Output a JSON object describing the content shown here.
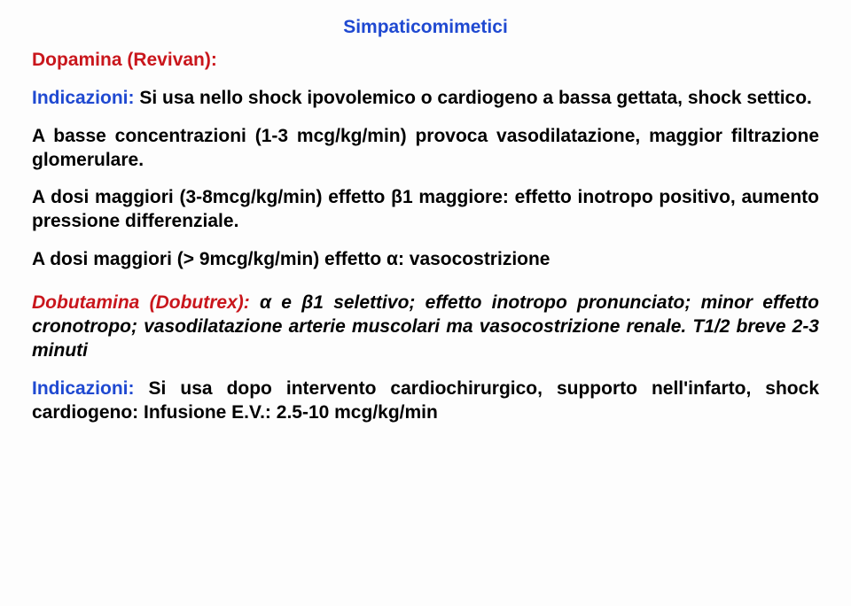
{
  "title": {
    "text": "Simpaticomimetici",
    "color": "#1f49d1"
  },
  "drug1": {
    "name": "Dopamina (Revivan):",
    "color": "#c9161c",
    "indLabel": "Indicazioni:",
    "indColor": "#1f49d1",
    "indText": " Si usa nello shock ipovolemico o cardiogeno a bassa gettata, shock settico."
  },
  "para2": "A basse concentrazioni (1-3 mcg/kg/min) provoca vasodilatazione, maggior filtrazione glomerulare.",
  "para3a": "A dosi maggiori (3-8mcg/kg/min) effetto ",
  "para3beta": "β",
  "para3b": "1 maggiore: effetto inotropo positivo, aumento pressione differenziale.",
  "para4a": "A dosi maggiori (> 9mcg/kg/min) effetto ",
  "para4alpha": "α",
  "para4b": ": vasocostrizione",
  "drug2": {
    "name": "Dobutamina (Dobutrex):",
    "color": "#c9161c",
    "aPart": " α ",
    "mid1": "e ",
    "betaPart": "β",
    "mid2": "1 selettivo; effetto inotropo pronunciato; minor effetto cronotropo; vasodilatazione arterie muscolari ma vasocostrizione renale. T1/2 breve 2-3 minuti"
  },
  "drug2ind": {
    "label": "Indicazioni:",
    "color": "#1f49d1",
    "text": " Si usa dopo intervento cardiochirurgico, supporto nell'infarto, shock cardiogeno: Infusione E.V.: 2.5-10 mcg/kg/min"
  }
}
